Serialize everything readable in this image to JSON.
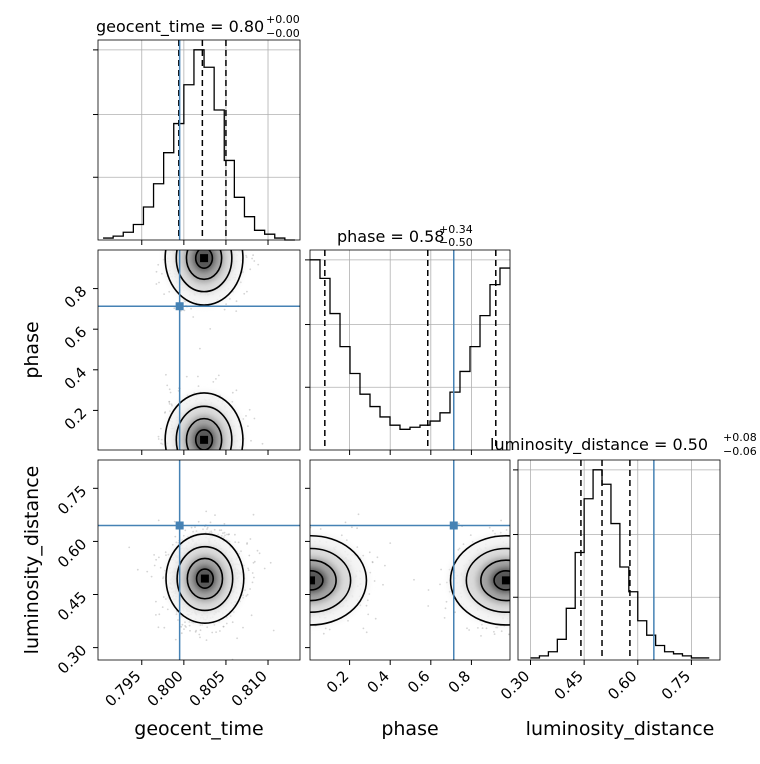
{
  "chart_data": {
    "type": "corner",
    "parameters": [
      "geocent_time",
      "phase",
      "luminosity_distance"
    ],
    "titles": [
      {
        "param": "geocent_time",
        "text": "geocent_time = 0.80",
        "plus": "+0.00",
        "minus": "−0.00"
      },
      {
        "param": "phase",
        "text": "phase = 0.58",
        "plus": "+0.34",
        "minus": "−0.50"
      },
      {
        "param": "luminosity_distance",
        "text": "luminosity_distance = 0.50",
        "plus": "+0.08",
        "minus": "−0.06"
      }
    ],
    "ranges": {
      "geocent_time": [
        0.7898,
        0.8138
      ],
      "phase": [
        0.005,
        0.99
      ],
      "luminosity_distance": [
        0.265,
        0.83
      ]
    },
    "ticks": {
      "geocent_time": {
        "values": [
          0.795,
          0.8,
          0.805,
          0.81
        ],
        "labels": [
          "0.795",
          "0.800",
          "0.805",
          "0.810"
        ]
      },
      "phase_x": {
        "values": [
          0.2,
          0.4,
          0.6,
          0.8
        ],
        "labels": [
          "0.2",
          "0.4",
          "0.6",
          "0.8"
        ]
      },
      "phase_y": {
        "values": [
          0.2,
          0.4,
          0.6,
          0.8
        ],
        "labels": [
          "0.2",
          "0.4",
          "0.6",
          "0.8"
        ]
      },
      "luminosity_distance": {
        "values": [
          0.3,
          0.45,
          0.6,
          0.75
        ],
        "labels": [
          "0.30",
          "0.45",
          "0.60",
          "0.75"
        ]
      }
    },
    "truths": {
      "geocent_time": 0.7995,
      "phase": 0.713,
      "luminosity_distance": 0.645
    },
    "quantiles": {
      "geocent_time": [
        0.7994,
        0.8022,
        0.805
      ],
      "phase": [
        0.078,
        0.585,
        0.92
      ],
      "luminosity_distance": [
        0.441,
        0.5,
        0.578
      ]
    },
    "histograms": {
      "geocent_time": {
        "edges": [
          0.7904,
          0.7916,
          0.7928,
          0.794,
          0.7952,
          0.7964,
          0.7976,
          0.7988,
          0.8,
          0.8012,
          0.8024,
          0.8036,
          0.8048,
          0.806,
          0.8072,
          0.8084,
          0.8096,
          0.8108,
          0.812,
          0.8132
        ],
        "counts": [
          1,
          2,
          4,
          8,
          17,
          29,
          45,
          60,
          80,
          98,
          89,
          67,
          41,
          22,
          12,
          5,
          3,
          1,
          0
        ]
      },
      "phase": {
        "edges": [
          0.005,
          0.0542,
          0.1035,
          0.1528,
          0.202,
          0.2512,
          0.3005,
          0.3498,
          0.399,
          0.4482,
          0.4975,
          0.5468,
          0.596,
          0.6452,
          0.6945,
          0.7437,
          0.793,
          0.8423,
          0.8915,
          0.9407,
          0.99
        ],
        "counts": [
          92,
          83,
          66,
          50,
          37,
          27,
          21,
          16,
          12,
          10,
          11,
          12,
          14,
          18,
          28,
          38,
          50,
          65,
          80,
          88
        ]
      },
      "luminosity_distance": {
        "edges": [
          0.3,
          0.325,
          0.35,
          0.375,
          0.4,
          0.425,
          0.45,
          0.475,
          0.5,
          0.525,
          0.55,
          0.575,
          0.6,
          0.625,
          0.65,
          0.675,
          0.7,
          0.725,
          0.75,
          0.775,
          0.8
        ],
        "counts": [
          1,
          2,
          4,
          10,
          25,
          52,
          78,
          92,
          85,
          66,
          45,
          33,
          19,
          12,
          7,
          4,
          3,
          2,
          1,
          1
        ]
      }
    },
    "contours_2d": {
      "phase_vs_geocent_time": {
        "modes": [
          [
            0.8024,
            0.95
          ],
          [
            0.8024,
            0.055
          ]
        ]
      },
      "luminosity_distance_vs_geocent_time": {
        "modes": [
          [
            0.8025,
            0.495
          ]
        ]
      },
      "luminosity_distance_vs_phase": {
        "modes": [
          [
            0.01,
            0.49
          ],
          [
            0.97,
            0.49
          ]
        ]
      }
    },
    "grid": true
  }
}
